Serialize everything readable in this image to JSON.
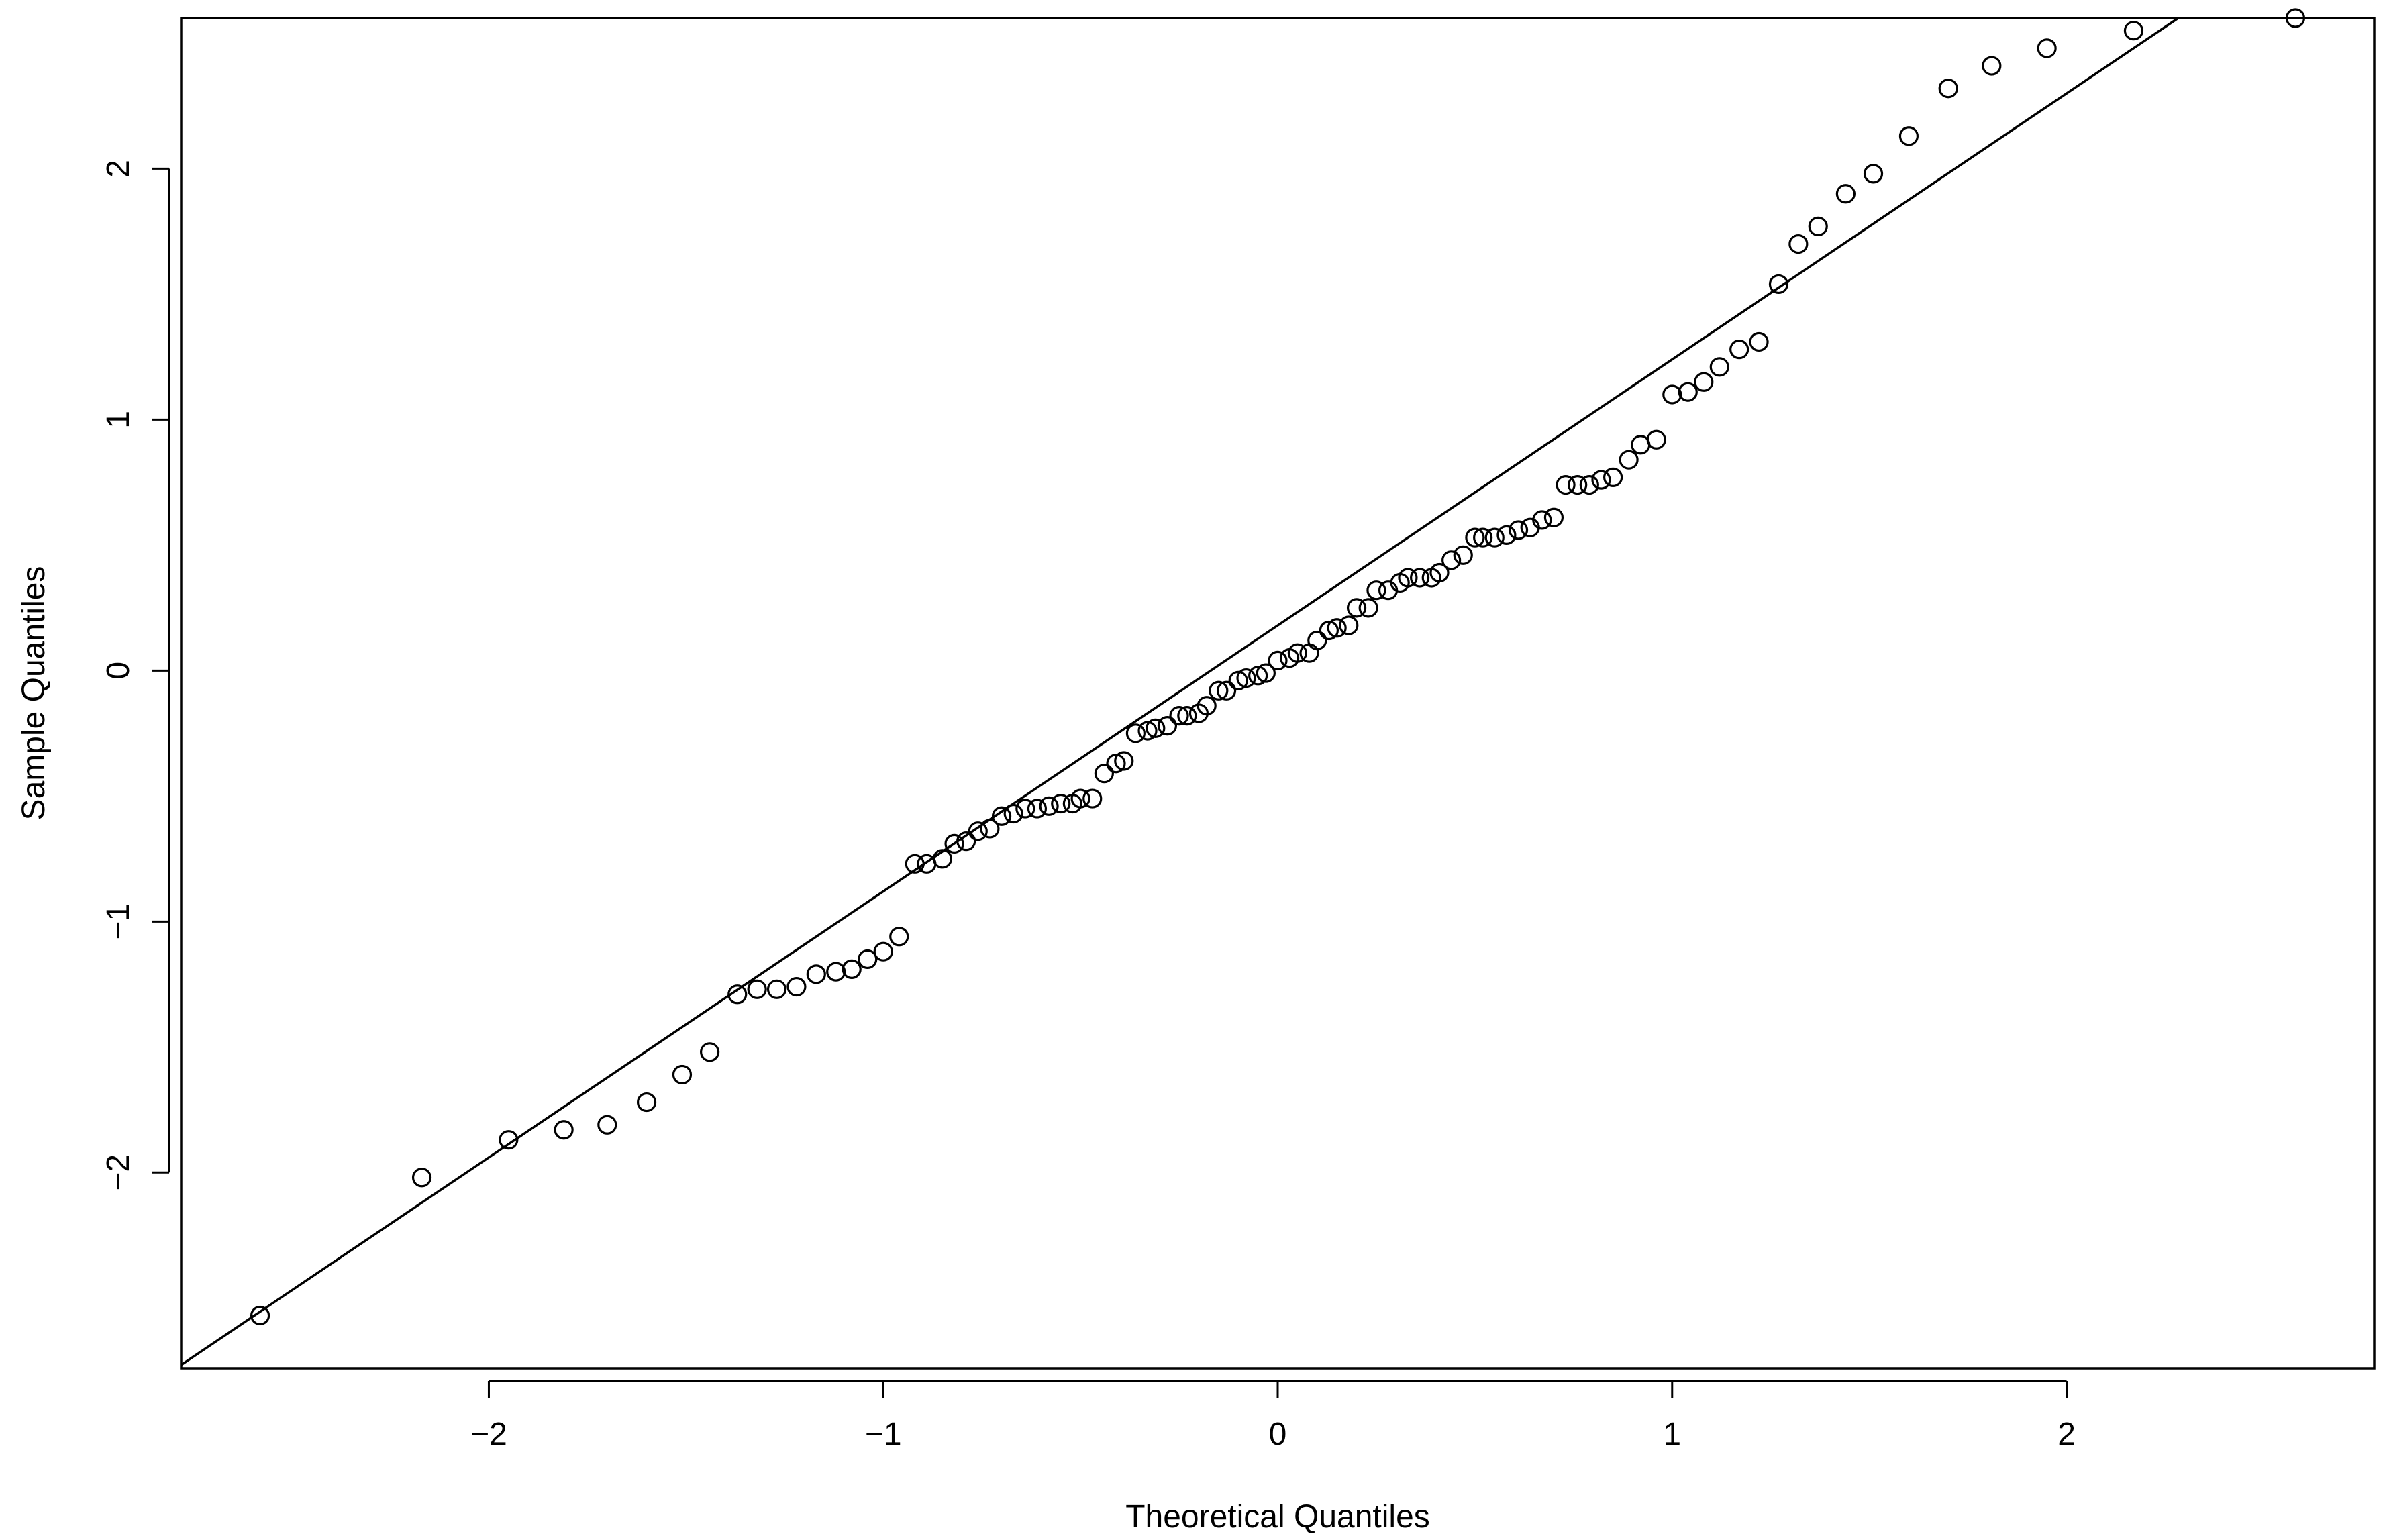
{
  "chart_data": {
    "type": "scatter",
    "title": "",
    "xlabel": "Theoretical Quantiles",
    "ylabel": "Sample Quantiles",
    "xlim": [
      -2.78,
      2.78
    ],
    "ylim": [
      -2.78,
      2.6
    ],
    "xticks": [
      -2,
      -1,
      0,
      1,
      2
    ],
    "yticks": [
      -2,
      -1,
      0,
      1,
      2
    ],
    "xtick_labels": [
      "−2",
      "−1",
      "0",
      "1",
      "2"
    ],
    "ytick_labels": [
      "−2",
      "−1",
      "0",
      "1",
      "2"
    ],
    "grid": false,
    "legend": "none",
    "reference_line": {
      "intercept": 0.18,
      "slope": 1.06
    },
    "x": [
      -2.58,
      -2.17,
      -1.95,
      -1.81,
      -1.7,
      -1.6,
      -1.51,
      -1.44,
      -1.37,
      -1.32,
      -1.27,
      -1.22,
      -1.17,
      -1.12,
      -1.08,
      -1.04,
      -1.0,
      -0.96,
      -0.92,
      -0.89,
      -0.85,
      -0.82,
      -0.79,
      -0.76,
      -0.73,
      -0.7,
      -0.67,
      -0.64,
      -0.61,
      -0.58,
      -0.55,
      -0.52,
      -0.5,
      -0.47,
      -0.44,
      -0.41,
      -0.39,
      -0.36,
      -0.33,
      -0.31,
      -0.28,
      -0.25,
      -0.23,
      -0.2,
      -0.18,
      -0.15,
      -0.13,
      -0.1,
      -0.08,
      -0.05,
      -0.03,
      0.0,
      0.03,
      0.05,
      0.08,
      0.1,
      0.13,
      0.15,
      0.18,
      0.2,
      0.23,
      0.25,
      0.28,
      0.31,
      0.33,
      0.36,
      0.39,
      0.41,
      0.44,
      0.47,
      0.5,
      0.52,
      0.55,
      0.58,
      0.61,
      0.64,
      0.67,
      0.7,
      0.73,
      0.76,
      0.79,
      0.82,
      0.85,
      0.89,
      0.92,
      0.96,
      1.0,
      1.04,
      1.08,
      1.12,
      1.17,
      1.22,
      1.27,
      1.32,
      1.37,
      1.44,
      1.51,
      1.6,
      1.7,
      1.81,
      1.95,
      2.17,
      2.58
    ],
    "y": [
      -2.57,
      -2.02,
      -1.87,
      -1.83,
      -1.81,
      -1.72,
      -1.61,
      -1.52,
      -1.29,
      -1.27,
      -1.27,
      -1.26,
      -1.21,
      -1.2,
      -1.19,
      -1.15,
      -1.12,
      -1.06,
      -0.77,
      -0.77,
      -0.75,
      -0.69,
      -0.68,
      -0.64,
      -0.63,
      -0.58,
      -0.57,
      -0.55,
      -0.55,
      -0.54,
      -0.53,
      -0.53,
      -0.51,
      -0.51,
      -0.41,
      -0.37,
      -0.36,
      -0.25,
      -0.24,
      -0.23,
      -0.22,
      -0.18,
      -0.18,
      -0.17,
      -0.14,
      -0.08,
      -0.08,
      -0.04,
      -0.03,
      -0.02,
      -0.01,
      0.04,
      0.05,
      0.07,
      0.07,
      0.12,
      0.16,
      0.17,
      0.18,
      0.25,
      0.25,
      0.32,
      0.32,
      0.35,
      0.37,
      0.37,
      0.37,
      0.39,
      0.44,
      0.46,
      0.53,
      0.53,
      0.53,
      0.54,
      0.56,
      0.57,
      0.6,
      0.61,
      0.74,
      0.74,
      0.74,
      0.76,
      0.77,
      0.84,
      0.9,
      0.92,
      1.1,
      1.11,
      1.15,
      1.21,
      1.28,
      1.31,
      1.54,
      1.7,
      1.77,
      1.9,
      1.98,
      2.13,
      2.32,
      2.41,
      2.48,
      2.55,
      2.6
    ]
  }
}
